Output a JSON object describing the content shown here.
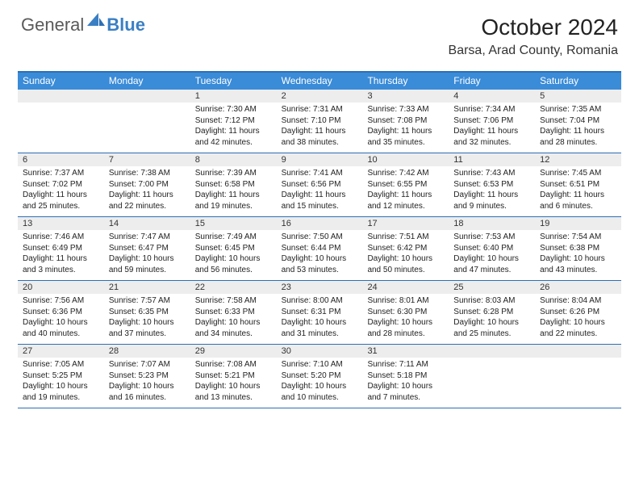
{
  "logo": {
    "text1": "General",
    "text2": "Blue"
  },
  "title": "October 2024",
  "location": "Barsa, Arad County, Romania",
  "colors": {
    "header_bg": "#3a8bd8",
    "border": "#2d6fb5",
    "daynum_bg": "#ededed",
    "logo_gray": "#5a5a5a",
    "logo_blue": "#3a7fc4"
  },
  "day_labels": [
    "Sunday",
    "Monday",
    "Tuesday",
    "Wednesday",
    "Thursday",
    "Friday",
    "Saturday"
  ],
  "weeks": [
    [
      {
        "num": "",
        "sunrise": "",
        "sunset": "",
        "daylight": ""
      },
      {
        "num": "",
        "sunrise": "",
        "sunset": "",
        "daylight": ""
      },
      {
        "num": "1",
        "sunrise": "Sunrise: 7:30 AM",
        "sunset": "Sunset: 7:12 PM",
        "daylight": "Daylight: 11 hours and 42 minutes."
      },
      {
        "num": "2",
        "sunrise": "Sunrise: 7:31 AM",
        "sunset": "Sunset: 7:10 PM",
        "daylight": "Daylight: 11 hours and 38 minutes."
      },
      {
        "num": "3",
        "sunrise": "Sunrise: 7:33 AM",
        "sunset": "Sunset: 7:08 PM",
        "daylight": "Daylight: 11 hours and 35 minutes."
      },
      {
        "num": "4",
        "sunrise": "Sunrise: 7:34 AM",
        "sunset": "Sunset: 7:06 PM",
        "daylight": "Daylight: 11 hours and 32 minutes."
      },
      {
        "num": "5",
        "sunrise": "Sunrise: 7:35 AM",
        "sunset": "Sunset: 7:04 PM",
        "daylight": "Daylight: 11 hours and 28 minutes."
      }
    ],
    [
      {
        "num": "6",
        "sunrise": "Sunrise: 7:37 AM",
        "sunset": "Sunset: 7:02 PM",
        "daylight": "Daylight: 11 hours and 25 minutes."
      },
      {
        "num": "7",
        "sunrise": "Sunrise: 7:38 AM",
        "sunset": "Sunset: 7:00 PM",
        "daylight": "Daylight: 11 hours and 22 minutes."
      },
      {
        "num": "8",
        "sunrise": "Sunrise: 7:39 AM",
        "sunset": "Sunset: 6:58 PM",
        "daylight": "Daylight: 11 hours and 19 minutes."
      },
      {
        "num": "9",
        "sunrise": "Sunrise: 7:41 AM",
        "sunset": "Sunset: 6:56 PM",
        "daylight": "Daylight: 11 hours and 15 minutes."
      },
      {
        "num": "10",
        "sunrise": "Sunrise: 7:42 AM",
        "sunset": "Sunset: 6:55 PM",
        "daylight": "Daylight: 11 hours and 12 minutes."
      },
      {
        "num": "11",
        "sunrise": "Sunrise: 7:43 AM",
        "sunset": "Sunset: 6:53 PM",
        "daylight": "Daylight: 11 hours and 9 minutes."
      },
      {
        "num": "12",
        "sunrise": "Sunrise: 7:45 AM",
        "sunset": "Sunset: 6:51 PM",
        "daylight": "Daylight: 11 hours and 6 minutes."
      }
    ],
    [
      {
        "num": "13",
        "sunrise": "Sunrise: 7:46 AM",
        "sunset": "Sunset: 6:49 PM",
        "daylight": "Daylight: 11 hours and 3 minutes."
      },
      {
        "num": "14",
        "sunrise": "Sunrise: 7:47 AM",
        "sunset": "Sunset: 6:47 PM",
        "daylight": "Daylight: 10 hours and 59 minutes."
      },
      {
        "num": "15",
        "sunrise": "Sunrise: 7:49 AM",
        "sunset": "Sunset: 6:45 PM",
        "daylight": "Daylight: 10 hours and 56 minutes."
      },
      {
        "num": "16",
        "sunrise": "Sunrise: 7:50 AM",
        "sunset": "Sunset: 6:44 PM",
        "daylight": "Daylight: 10 hours and 53 minutes."
      },
      {
        "num": "17",
        "sunrise": "Sunrise: 7:51 AM",
        "sunset": "Sunset: 6:42 PM",
        "daylight": "Daylight: 10 hours and 50 minutes."
      },
      {
        "num": "18",
        "sunrise": "Sunrise: 7:53 AM",
        "sunset": "Sunset: 6:40 PM",
        "daylight": "Daylight: 10 hours and 47 minutes."
      },
      {
        "num": "19",
        "sunrise": "Sunrise: 7:54 AM",
        "sunset": "Sunset: 6:38 PM",
        "daylight": "Daylight: 10 hours and 43 minutes."
      }
    ],
    [
      {
        "num": "20",
        "sunrise": "Sunrise: 7:56 AM",
        "sunset": "Sunset: 6:36 PM",
        "daylight": "Daylight: 10 hours and 40 minutes."
      },
      {
        "num": "21",
        "sunrise": "Sunrise: 7:57 AM",
        "sunset": "Sunset: 6:35 PM",
        "daylight": "Daylight: 10 hours and 37 minutes."
      },
      {
        "num": "22",
        "sunrise": "Sunrise: 7:58 AM",
        "sunset": "Sunset: 6:33 PM",
        "daylight": "Daylight: 10 hours and 34 minutes."
      },
      {
        "num": "23",
        "sunrise": "Sunrise: 8:00 AM",
        "sunset": "Sunset: 6:31 PM",
        "daylight": "Daylight: 10 hours and 31 minutes."
      },
      {
        "num": "24",
        "sunrise": "Sunrise: 8:01 AM",
        "sunset": "Sunset: 6:30 PM",
        "daylight": "Daylight: 10 hours and 28 minutes."
      },
      {
        "num": "25",
        "sunrise": "Sunrise: 8:03 AM",
        "sunset": "Sunset: 6:28 PM",
        "daylight": "Daylight: 10 hours and 25 minutes."
      },
      {
        "num": "26",
        "sunrise": "Sunrise: 8:04 AM",
        "sunset": "Sunset: 6:26 PM",
        "daylight": "Daylight: 10 hours and 22 minutes."
      }
    ],
    [
      {
        "num": "27",
        "sunrise": "Sunrise: 7:05 AM",
        "sunset": "Sunset: 5:25 PM",
        "daylight": "Daylight: 10 hours and 19 minutes."
      },
      {
        "num": "28",
        "sunrise": "Sunrise: 7:07 AM",
        "sunset": "Sunset: 5:23 PM",
        "daylight": "Daylight: 10 hours and 16 minutes."
      },
      {
        "num": "29",
        "sunrise": "Sunrise: 7:08 AM",
        "sunset": "Sunset: 5:21 PM",
        "daylight": "Daylight: 10 hours and 13 minutes."
      },
      {
        "num": "30",
        "sunrise": "Sunrise: 7:10 AM",
        "sunset": "Sunset: 5:20 PM",
        "daylight": "Daylight: 10 hours and 10 minutes."
      },
      {
        "num": "31",
        "sunrise": "Sunrise: 7:11 AM",
        "sunset": "Sunset: 5:18 PM",
        "daylight": "Daylight: 10 hours and 7 minutes."
      },
      {
        "num": "",
        "sunrise": "",
        "sunset": "",
        "daylight": ""
      },
      {
        "num": "",
        "sunrise": "",
        "sunset": "",
        "daylight": ""
      }
    ]
  ]
}
